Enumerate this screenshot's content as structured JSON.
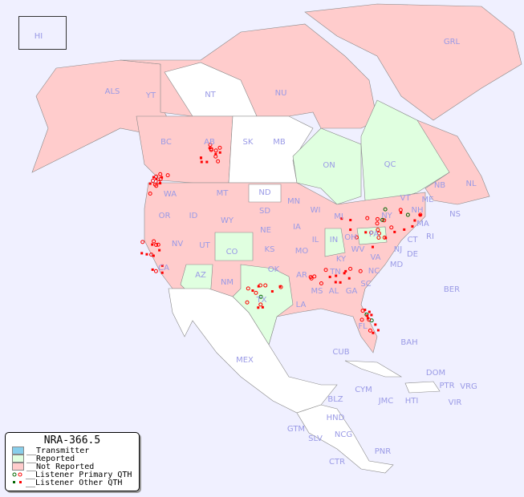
{
  "legend": {
    "title": "NRA-366.5",
    "items": [
      {
        "label": "__Transmitter",
        "color": "#87ceeb"
      },
      {
        "label": "__Reported",
        "color": "#e0ffe0"
      },
      {
        "label": "__Not Reported",
        "color": "#ffcccc"
      },
      {
        "label": "__Listener Primary QTH",
        "color": "#ff0000"
      },
      {
        "label": "__Listener Other QTH",
        "color": "#ff0000"
      }
    ]
  },
  "colors": {
    "not_reported": "#ffcccc",
    "reported": "#e0ffe0",
    "unlisted": "#ffffff",
    "ocean": "#f0f0ff",
    "marker": "#ff0000",
    "marker_alt": "#006600"
  },
  "regions": [
    "HI",
    "GRL",
    "ALS",
    "YT",
    "NT",
    "NU",
    "BC",
    "AB",
    "SK",
    "MB",
    "ON",
    "QC",
    "NL",
    "NB",
    "NS",
    "WA",
    "OR",
    "ID",
    "MT",
    "WY",
    "ND",
    "SD",
    "NE",
    "MN",
    "WI",
    "IA",
    "MI",
    "IL",
    "IN",
    "OH",
    "PA",
    "NY",
    "VT",
    "NH",
    "ME",
    "MA",
    "CT",
    "RI",
    "NJ",
    "DE",
    "MD",
    "VA",
    "WV",
    "KY",
    "TN",
    "NC",
    "SC",
    "GA",
    "AL",
    "MS",
    "LA",
    "AR",
    "MO",
    "KS",
    "OK",
    "TX",
    "NM",
    "CO",
    "UT",
    "AZ",
    "NV",
    "CA",
    "FL",
    "MEX",
    "CUB",
    "BAH",
    "BER",
    "DOM",
    "PTR",
    "VRG",
    "VIR",
    "CYM",
    "JMC",
    "HTI",
    "BLZ",
    "HND",
    "GTM",
    "SLV",
    "NCG",
    "CTR",
    "PNR"
  ]
}
